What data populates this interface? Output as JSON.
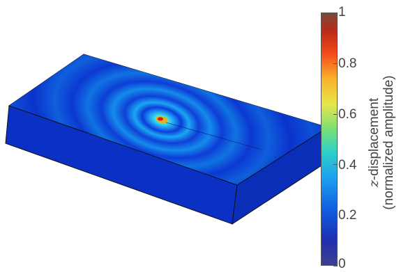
{
  "colorbar": {
    "ticks": [
      "0",
      "0.2",
      "0.4",
      "0.6",
      "0.8",
      "1"
    ],
    "label_symbol": "z",
    "label_line1": "-displacement",
    "label_line2": "(normalized amplitude)",
    "colors": [
      "#3b3f8f",
      "#1f2fb0",
      "#0f5ee0",
      "#1da2f0",
      "#2fd0c8",
      "#85e06e",
      "#e8e64a",
      "#f9b12a",
      "#f34a1a",
      "#b82a18",
      "#7a4a3d"
    ]
  }
}
